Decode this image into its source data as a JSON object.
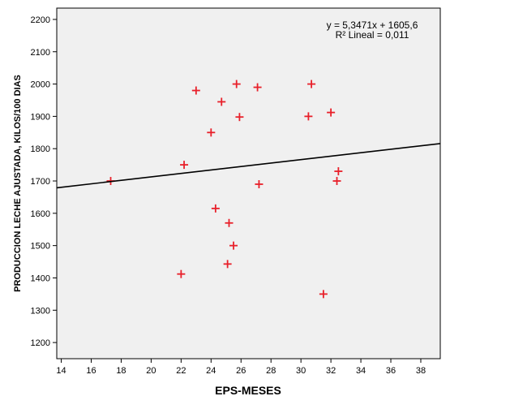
{
  "chart_data": {
    "type": "scatter",
    "xlabel": "EPS-MESES",
    "ylabel": "PRODUCCION LECHE AJUSTADA, KILOS/100 DIAS",
    "xlim": [
      13.7,
      39.3
    ],
    "ylim": [
      1150,
      2235
    ],
    "xticks": [
      14,
      16,
      18,
      20,
      22,
      24,
      26,
      28,
      30,
      32,
      34,
      36,
      38
    ],
    "yticks": [
      1200,
      1300,
      1400,
      1500,
      1600,
      1700,
      1800,
      1900,
      2000,
      2100,
      2200
    ],
    "grid": false,
    "marker": "+",
    "marker_color": "#e8202a",
    "plot_background": "#f0f0f0",
    "points": [
      {
        "x": 17.3,
        "y": 1700
      },
      {
        "x": 22.0,
        "y": 1412
      },
      {
        "x": 22.2,
        "y": 1750
      },
      {
        "x": 23.0,
        "y": 1980
      },
      {
        "x": 24.0,
        "y": 1850
      },
      {
        "x": 24.3,
        "y": 1615
      },
      {
        "x": 24.7,
        "y": 1945
      },
      {
        "x": 25.1,
        "y": 1443
      },
      {
        "x": 25.2,
        "y": 1570
      },
      {
        "x": 25.5,
        "y": 1500
      },
      {
        "x": 25.7,
        "y": 2000
      },
      {
        "x": 25.9,
        "y": 1898
      },
      {
        "x": 27.1,
        "y": 1990
      },
      {
        "x": 27.2,
        "y": 1690
      },
      {
        "x": 30.5,
        "y": 1900
      },
      {
        "x": 30.7,
        "y": 2000
      },
      {
        "x": 31.5,
        "y": 1350
      },
      {
        "x": 32.0,
        "y": 1912
      },
      {
        "x": 32.4,
        "y": 1700
      },
      {
        "x": 32.5,
        "y": 1730
      }
    ],
    "fit_line": {
      "slope": 5.3471,
      "intercept": 1605.6,
      "equation_label": "y = 5,3471x + 1605,6",
      "r2_label": "R² Lineal = 0,011"
    }
  }
}
